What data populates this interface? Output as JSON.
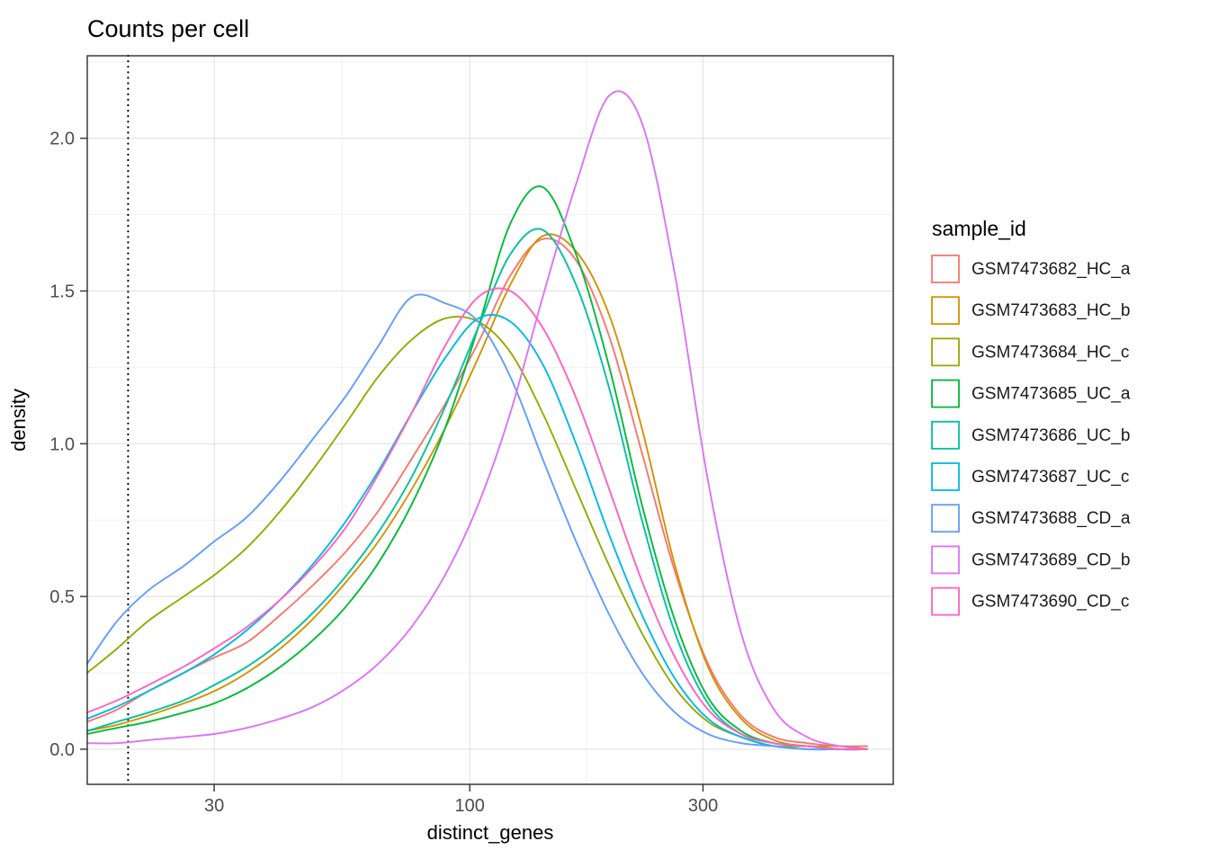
{
  "style": {
    "panel_background": "#FFFFFF",
    "grid_major_color": "#E3E3E3",
    "grid_minor_color": "#F1F1F1",
    "panel_border_color": "#2B2B2B",
    "tick_color": "#333333",
    "axis_text_color": "#4D4D4D",
    "vline_color": "#000000"
  },
  "chart_data": {
    "type": "line",
    "subtype": "density",
    "title": "Counts per cell",
    "xlabel": "distinct_genes",
    "ylabel": "density",
    "legend_title": "sample_id",
    "legend_position": "right",
    "grid": true,
    "x_scale": "log10",
    "xlim": [
      16.5,
      735
    ],
    "ylim": [
      -0.115,
      2.27
    ],
    "x_ticks": [
      30,
      100,
      300
    ],
    "x_tick_labels": [
      "30",
      "100",
      "300"
    ],
    "x_minor_gridlines": [
      54.8,
      173.2
    ],
    "y_ticks": [
      0,
      0.5,
      1,
      1.5,
      2
    ],
    "y_tick_labels": [
      "0.0",
      "0.5",
      "1.0",
      "1.5",
      "2.0"
    ],
    "y_minor_gridlines": [
      0.25,
      0.75,
      1.25,
      1.75,
      2.25
    ],
    "vline": {
      "x": 20,
      "style": "dotted",
      "color": "#000000"
    },
    "x": [
      16.5,
      19,
      22,
      26,
      30,
      35,
      41,
      48,
      56,
      65,
      76,
      89,
      104,
      121,
      141,
      165,
      193,
      225,
      263,
      307,
      359,
      419,
      490,
      572,
      650
    ],
    "series": [
      {
        "name": "GSM7473682_HC_a",
        "color": "#F8766D",
        "values": [
          0.09,
          0.13,
          0.19,
          0.25,
          0.3,
          0.35,
          0.44,
          0.54,
          0.65,
          0.78,
          0.95,
          1.13,
          1.33,
          1.55,
          1.67,
          1.6,
          1.35,
          0.97,
          0.58,
          0.28,
          0.11,
          0.04,
          0.02,
          0.01,
          0.01
        ]
      },
      {
        "name": "GSM7473683_HC_b",
        "color": "#D39200",
        "values": [
          0.06,
          0.08,
          0.11,
          0.15,
          0.19,
          0.25,
          0.33,
          0.43,
          0.55,
          0.68,
          0.85,
          1.05,
          1.28,
          1.52,
          1.68,
          1.63,
          1.42,
          1.05,
          0.6,
          0.27,
          0.1,
          0.03,
          0.01,
          0.01,
          0
        ]
      },
      {
        "name": "GSM7473684_HC_c",
        "color": "#93AA00",
        "values": [
          0.25,
          0.33,
          0.42,
          0.5,
          0.57,
          0.66,
          0.78,
          0.92,
          1.07,
          1.22,
          1.34,
          1.41,
          1.4,
          1.3,
          1.1,
          0.85,
          0.6,
          0.38,
          0.2,
          0.09,
          0.04,
          0.01,
          0.01,
          0,
          0
        ]
      },
      {
        "name": "GSM7473685_UC_a",
        "color": "#00BA38",
        "values": [
          0.05,
          0.07,
          0.09,
          0.12,
          0.15,
          0.2,
          0.27,
          0.36,
          0.47,
          0.61,
          0.8,
          1.05,
          1.38,
          1.72,
          1.84,
          1.62,
          1.25,
          0.8,
          0.42,
          0.17,
          0.06,
          0.02,
          0.01,
          0,
          0
        ]
      },
      {
        "name": "GSM7473686_UC_b",
        "color": "#00C19F",
        "values": [
          0.06,
          0.09,
          0.12,
          0.16,
          0.21,
          0.27,
          0.35,
          0.45,
          0.57,
          0.71,
          0.89,
          1.12,
          1.38,
          1.62,
          1.7,
          1.52,
          1.18,
          0.75,
          0.38,
          0.15,
          0.05,
          0.02,
          0.01,
          0,
          0
        ]
      },
      {
        "name": "GSM7473687_UC_c",
        "color": "#00B9E3",
        "values": [
          0.1,
          0.14,
          0.19,
          0.25,
          0.31,
          0.39,
          0.49,
          0.61,
          0.75,
          0.91,
          1.1,
          1.28,
          1.41,
          1.4,
          1.26,
          1.0,
          0.7,
          0.44,
          0.23,
          0.1,
          0.04,
          0.01,
          0,
          0,
          0
        ]
      },
      {
        "name": "GSM7473688_CD_a",
        "color": "#619CFF",
        "values": [
          0.28,
          0.42,
          0.52,
          0.6,
          0.68,
          0.76,
          0.88,
          1.02,
          1.16,
          1.32,
          1.48,
          1.46,
          1.4,
          1.22,
          0.95,
          0.68,
          0.44,
          0.25,
          0.12,
          0.05,
          0.02,
          0.01,
          0,
          0,
          0
        ]
      },
      {
        "name": "GSM7473689_CD_b",
        "color": "#DB72FB",
        "values": [
          0.02,
          0.02,
          0.03,
          0.04,
          0.05,
          0.07,
          0.1,
          0.14,
          0.2,
          0.28,
          0.4,
          0.57,
          0.8,
          1.1,
          1.48,
          1.85,
          2.14,
          2.05,
          1.55,
          0.88,
          0.38,
          0.13,
          0.04,
          0.01,
          0
        ]
      },
      {
        "name": "GSM7473690_CD_c",
        "color": "#FF61C3",
        "values": [
          0.12,
          0.16,
          0.21,
          0.27,
          0.33,
          0.4,
          0.49,
          0.6,
          0.73,
          0.9,
          1.1,
          1.32,
          1.48,
          1.5,
          1.38,
          1.15,
          0.85,
          0.55,
          0.3,
          0.13,
          0.05,
          0.02,
          0.01,
          0,
          0
        ]
      }
    ]
  }
}
